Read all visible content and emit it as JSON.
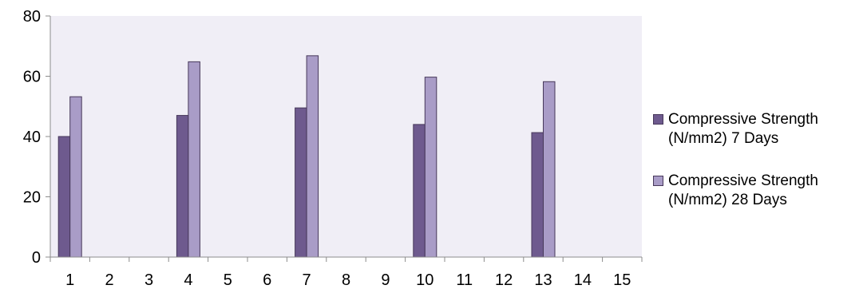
{
  "chart_data": {
    "type": "bar",
    "categories": [
      "1",
      "2",
      "3",
      "4",
      "5",
      "6",
      "7",
      "8",
      "9",
      "10",
      "11",
      "12",
      "13",
      "14",
      "15"
    ],
    "series": [
      {
        "name": "Compressive Strength\n(N/mm2) 7 Days",
        "color": "#6e5a8e",
        "values": [
          40,
          null,
          null,
          47,
          null,
          null,
          49.5,
          null,
          null,
          44,
          null,
          null,
          41.3,
          null,
          null
        ]
      },
      {
        "name": "Compressive Strength\n(N/mm2) 28 Days",
        "color": "#a99cc7",
        "values": [
          53.2,
          null,
          null,
          64.8,
          null,
          null,
          66.8,
          null,
          null,
          59.7,
          null,
          null,
          58.2,
          null,
          null
        ]
      }
    ],
    "yticks": [
      "0",
      "20",
      "40",
      "60",
      "80"
    ],
    "ylim": [
      0,
      80
    ],
    "plot_background": "#f0eef6",
    "grid": false,
    "legend_position": "right",
    "title": "",
    "xlabel": "",
    "ylabel": ""
  }
}
